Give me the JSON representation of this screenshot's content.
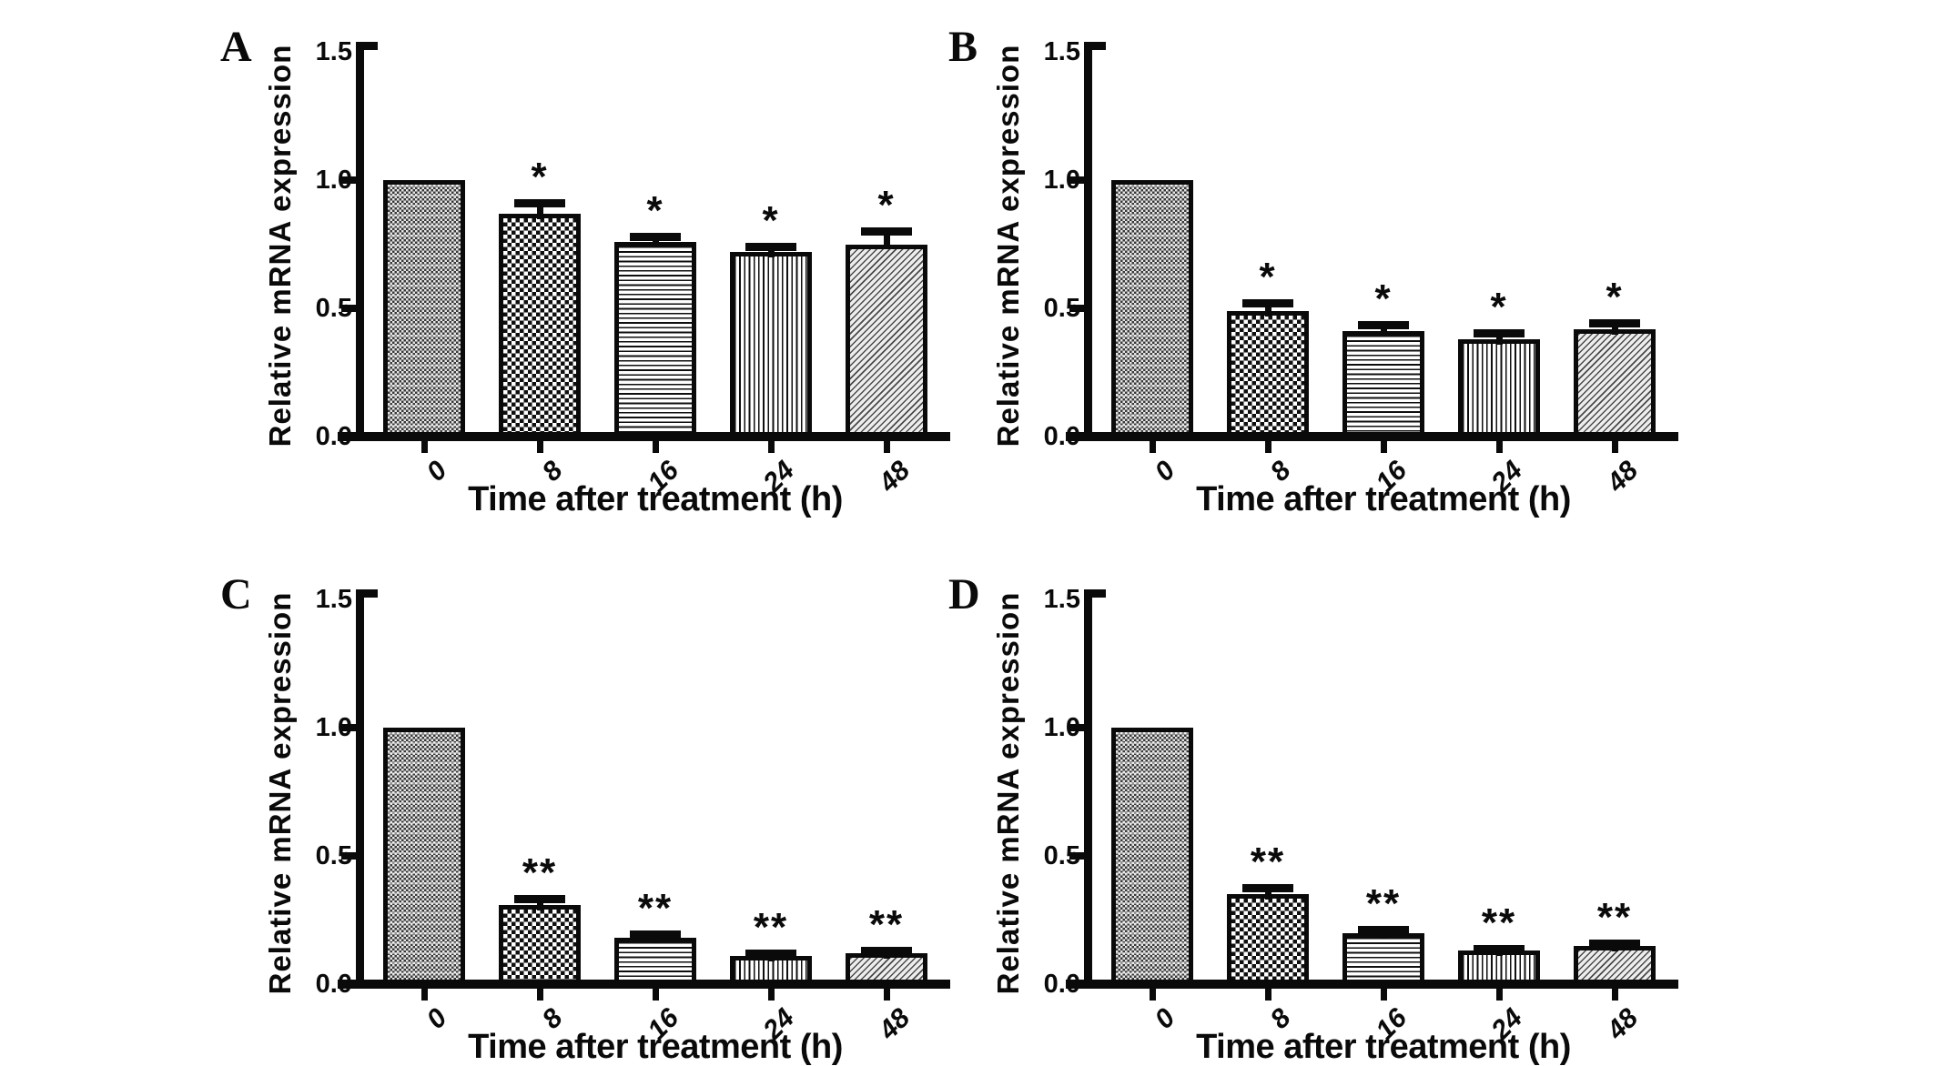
{
  "figure": {
    "background_color": "#ffffff",
    "ink_color": "#0a0a0a",
    "panel_letters": [
      "A",
      "B",
      "C",
      "D"
    ]
  },
  "chart_data": [
    {
      "type": "bar",
      "panel_label": "A",
      "ylabel": "Relative mRNA expression",
      "xlabel": "Time after treatment (h)",
      "categories": [
        "0",
        "8",
        "16",
        "24",
        "48"
      ],
      "values": [
        1.0,
        0.87,
        0.76,
        0.72,
        0.75
      ],
      "errors": [
        0,
        0.04,
        0.02,
        0.02,
        0.05
      ],
      "significance": [
        "",
        "*",
        "*",
        "*",
        "*"
      ],
      "ylim": [
        0,
        1.5
      ],
      "yticks": [
        0,
        0.5,
        1.0,
        1.5
      ],
      "ytick_labels": [
        "0.0",
        "0.5",
        "1.0",
        "1.5"
      ],
      "grid": false,
      "legend": null,
      "bar_patterns": [
        "fine-checker-halftone",
        "checkerboard",
        "horizontal-lines",
        "vertical-lines",
        "diagonal-lines"
      ]
    },
    {
      "type": "bar",
      "panel_label": "B",
      "ylabel": "Relative mRNA expression",
      "xlabel": "Time after treatment (h)",
      "categories": [
        "0",
        "8",
        "16",
        "24",
        "48"
      ],
      "values": [
        1.0,
        0.49,
        0.41,
        0.38,
        0.42
      ],
      "errors": [
        0,
        0.03,
        0.025,
        0.025,
        0.025
      ],
      "significance": [
        "",
        "*",
        "*",
        "*",
        "*"
      ],
      "ylim": [
        0,
        1.5
      ],
      "yticks": [
        0,
        0.5,
        1.0,
        1.5
      ],
      "ytick_labels": [
        "0.0",
        "0.5",
        "1.0",
        "1.5"
      ],
      "grid": false,
      "legend": null,
      "bar_patterns": [
        "fine-checker-halftone",
        "checkerboard",
        "horizontal-lines",
        "vertical-lines",
        "diagonal-lines"
      ]
    },
    {
      "type": "bar",
      "panel_label": "C",
      "ylabel": "Relative mRNA expression",
      "xlabel": "Time after treatment (h)",
      "categories": [
        "0",
        "8",
        "16",
        "24",
        "48"
      ],
      "values": [
        1.0,
        0.31,
        0.18,
        0.11,
        0.12
      ],
      "errors": [
        0,
        0.025,
        0.015,
        0.01,
        0.012
      ],
      "significance": [
        "",
        "**",
        "**",
        "**",
        "**"
      ],
      "ylim": [
        0,
        1.5
      ],
      "yticks": [
        0,
        0.5,
        1.0,
        1.5
      ],
      "ytick_labels": [
        "0.0",
        "0.5",
        "1.0",
        "1.5"
      ],
      "grid": false,
      "legend": null,
      "bar_patterns": [
        "fine-checker-halftone",
        "checkerboard",
        "horizontal-lines",
        "vertical-lines",
        "diagonal-lines"
      ]
    },
    {
      "type": "bar",
      "panel_label": "D",
      "ylabel": "Relative mRNA expression",
      "xlabel": "Time after treatment (h)",
      "categories": [
        "0",
        "8",
        "16",
        "24",
        "48"
      ],
      "values": [
        1.0,
        0.35,
        0.2,
        0.13,
        0.15
      ],
      "errors": [
        0,
        0.025,
        0.012,
        0.01,
        0.01
      ],
      "significance": [
        "",
        "**",
        "**",
        "**",
        "**"
      ],
      "ylim": [
        0,
        1.5
      ],
      "yticks": [
        0,
        0.5,
        1.0,
        1.5
      ],
      "ytick_labels": [
        "0.0",
        "0.5",
        "1.0",
        "1.5"
      ],
      "grid": false,
      "legend": null,
      "bar_patterns": [
        "fine-checker-halftone",
        "checkerboard",
        "horizontal-lines",
        "vertical-lines",
        "diagonal-lines"
      ]
    }
  ]
}
